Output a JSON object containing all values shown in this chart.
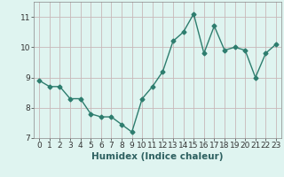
{
  "x": [
    0,
    1,
    2,
    3,
    4,
    5,
    6,
    7,
    8,
    9,
    10,
    11,
    12,
    13,
    14,
    15,
    16,
    17,
    18,
    19,
    20,
    21,
    22,
    23
  ],
  "y": [
    8.9,
    8.7,
    8.7,
    8.3,
    8.3,
    7.8,
    7.7,
    7.7,
    7.45,
    7.2,
    8.3,
    8.7,
    9.2,
    10.2,
    10.5,
    11.1,
    9.8,
    10.7,
    9.9,
    10.0,
    9.9,
    9.0,
    9.8,
    10.1
  ],
  "line_color": "#2d7d6e",
  "marker": "D",
  "marker_size": 2.5,
  "bg_color": "#dff4f0",
  "grid_color": "#c8b8b8",
  "xlabel": "Humidex (Indice chaleur)",
  "ylim": [
    7.0,
    11.5
  ],
  "xlim": [
    -0.5,
    23.5
  ],
  "yticks": [
    7,
    8,
    9,
    10,
    11
  ],
  "xticks": [
    0,
    1,
    2,
    3,
    4,
    5,
    6,
    7,
    8,
    9,
    10,
    11,
    12,
    13,
    14,
    15,
    16,
    17,
    18,
    19,
    20,
    21,
    22,
    23
  ],
  "tick_fontsize": 6.5,
  "xlabel_fontsize": 7.5,
  "linewidth": 1.0
}
